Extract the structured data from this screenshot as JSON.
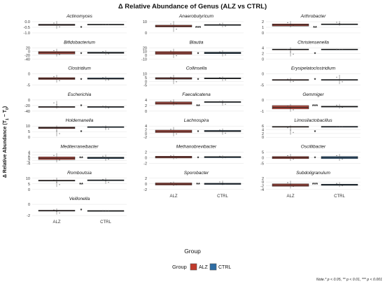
{
  "title": "Δ Relative Abundance of Genus (ALZ vs CTRL)",
  "chart_data": {
    "type": "boxplot",
    "title": "Δ Relative Abundance of Genus (ALZ vs CTRL)",
    "xlabel": "Group",
    "ylabel": "Δ Relative Abundance (T",
    "ylabel_sub1": "1",
    "ylabel_mid": " − T",
    "ylabel_sub2": "0",
    "ylabel_end": ")",
    "categories": [
      "ALZ",
      "CTRL"
    ],
    "legend": {
      "title": "Group",
      "position": "bottom",
      "items": [
        {
          "label": "ALZ",
          "color": "#c0392b"
        },
        {
          "label": "CTRL",
          "color": "#2e6da4"
        }
      ]
    },
    "note": "Note.* p < 0.05, ** p < 0.01, *** p < 0.001",
    "panels": [
      {
        "genus": "Actinomyces",
        "ticks": [
          "0.0",
          "-0.5",
          "-1.0"
        ],
        "sig": "*",
        "alz": {
          "q1": 0.62,
          "q3": 0.7,
          "whisk": [
            0.4,
            0.9
          ]
        },
        "ctrl": {
          "q1": 0.66,
          "q3": 0.7,
          "whisk": [
            0.66,
            0.7
          ]
        }
      },
      {
        "genus": "Anaerobutyricum",
        "ticks": [
          "10",
          "0"
        ],
        "sig": "***",
        "alz": {
          "q1": 0.52,
          "q3": 0.64,
          "whisk": [
            0.2,
            0.9
          ]
        },
        "ctrl": {
          "q1": 0.62,
          "q3": 0.68,
          "whisk": [
            0.5,
            0.8
          ]
        }
      },
      {
        "genus": "Arthrobacter",
        "ticks": [
          "2",
          "1",
          "0"
        ],
        "sig": "**",
        "alz": {
          "q1": 0.58,
          "q3": 0.72,
          "whisk": [
            0.5,
            0.9
          ]
        },
        "ctrl": {
          "q1": 0.68,
          "q3": 0.72,
          "whisk": [
            0.6,
            0.9
          ]
        }
      },
      {
        "genus": "Bifidobacterium",
        "ticks": [
          "20",
          "0",
          "-20",
          "-40"
        ],
        "sig": "*",
        "alz": {
          "q1": 0.46,
          "q3": 0.62,
          "whisk": [
            0.3,
            0.8
          ]
        },
        "ctrl": {
          "q1": 0.5,
          "q3": 0.58,
          "whisk": [
            0.4,
            0.7
          ]
        }
      },
      {
        "genus": "Blautia",
        "ticks": [
          "20",
          "10",
          "0",
          "-10"
        ],
        "sig": "*",
        "alz": {
          "q1": 0.44,
          "q3": 0.62,
          "whisk": [
            0.2,
            0.8
          ]
        },
        "ctrl": {
          "q1": 0.48,
          "q3": 0.58,
          "whisk": [
            0.3,
            0.7
          ]
        }
      },
      {
        "genus": "Christensenella",
        "ticks": [
          "4",
          "2",
          "0"
        ],
        "sig": "*",
        "alz": {
          "q1": 0.74,
          "q3": 0.78,
          "whisk": [
            0.3,
            0.9
          ]
        },
        "ctrl": {
          "q1": 0.74,
          "q3": 0.78,
          "whisk": [
            0.74,
            0.78
          ]
        }
      },
      {
        "genus": "Clostridium",
        "ticks": [
          "0",
          "-5"
        ],
        "sig": "*",
        "alz": {
          "q1": 0.5,
          "q3": 0.62,
          "whisk": [
            0.3,
            0.8
          ]
        },
        "ctrl": {
          "q1": 0.52,
          "q3": 0.6,
          "whisk": [
            0.4,
            0.7
          ]
        }
      },
      {
        "genus": "Collinsella",
        "ticks": [
          "10",
          "5",
          "0",
          "-5"
        ],
        "sig": "*",
        "alz": {
          "q1": 0.52,
          "q3": 0.62,
          "whisk": [
            0.2,
            0.8
          ]
        },
        "ctrl": {
          "q1": 0.54,
          "q3": 0.6,
          "whisk": [
            0.4,
            0.7
          ]
        }
      },
      {
        "genus": "Erysipelatoclostridium",
        "ticks": [
          "0",
          "-5"
        ],
        "sig": "*",
        "alz": {
          "q1": 0.44,
          "q3": 0.5,
          "whisk": [
            0.3,
            0.6
          ]
        },
        "ctrl": {
          "q1": 0.46,
          "q3": 0.5,
          "whisk": [
            0.2,
            0.8
          ]
        }
      },
      {
        "genus": "Escherichia",
        "ticks": [
          "0",
          "-20",
          "-40"
        ],
        "sig": "*",
        "alz": {
          "q1": 0.38,
          "q3": 0.44,
          "whisk": [
            0.3,
            0.8
          ]
        },
        "ctrl": {
          "q1": 0.38,
          "q3": 0.44,
          "whisk": [
            0.3,
            0.5
          ]
        }
      },
      {
        "genus": "Faecalicatena",
        "ticks": [
          "4",
          "2",
          "0"
        ],
        "sig": "**",
        "alz": {
          "q1": 0.58,
          "q3": 0.74,
          "whisk": [
            0.5,
            0.9
          ]
        },
        "ctrl": {
          "q1": 0.7,
          "q3": 0.76,
          "whisk": [
            0.5,
            0.85
          ]
        }
      },
      {
        "genus": "Gemmiger",
        "ticks": [
          "0",
          "-1"
        ],
        "sig": "***",
        "alz": {
          "q1": 0.28,
          "q3": 0.5,
          "whisk": [
            0.1,
            0.6
          ]
        },
        "ctrl": {
          "q1": 0.4,
          "q3": 0.46,
          "whisk": [
            0.3,
            0.6
          ]
        }
      },
      {
        "genus": "Holdemanella",
        "ticks": [
          "10",
          "5",
          "0"
        ],
        "sig": "*",
        "alz": {
          "q1": 0.7,
          "q3": 0.8,
          "whisk": [
            0.2,
            0.9
          ]
        },
        "ctrl": {
          "q1": 0.8,
          "q3": 0.82,
          "whisk": [
            0.6,
            0.9
          ]
        }
      },
      {
        "genus": "Lachnospira",
        "ticks": [
          "4",
          "2",
          "0",
          "-2"
        ],
        "sig": "*",
        "alz": {
          "q1": 0.44,
          "q3": 0.6,
          "whisk": [
            0.2,
            0.8
          ]
        },
        "ctrl": {
          "q1": 0.5,
          "q3": 0.58,
          "whisk": [
            0.3,
            0.7
          ]
        }
      },
      {
        "genus": "Limosilactobacillus",
        "ticks": [
          "6",
          "4",
          "2",
          "0"
        ],
        "sig": "*",
        "alz": {
          "q1": 0.8,
          "q3": 0.84,
          "whisk": [
            0.3,
            0.9
          ]
        },
        "ctrl": {
          "q1": 0.82,
          "q3": 0.84,
          "whisk": [
            0.82,
            0.84
          ]
        }
      },
      {
        "genus": "Mediterraneibacter",
        "ticks": [
          "4",
          "2",
          "0",
          "-2",
          "-4"
        ],
        "sig": "**",
        "alz": {
          "q1": 0.38,
          "q3": 0.56,
          "whisk": [
            0.2,
            0.8
          ]
        },
        "ctrl": {
          "q1": 0.44,
          "q3": 0.54,
          "whisk": [
            0.3,
            0.7
          ]
        }
      },
      {
        "genus": "Methanobrevibacter",
        "ticks": [
          "2",
          "0",
          "-2"
        ],
        "sig": "*",
        "alz": {
          "q1": 0.48,
          "q3": 0.6,
          "whisk": [
            0.4,
            0.7
          ]
        },
        "ctrl": {
          "q1": 0.5,
          "q3": 0.58,
          "whisk": [
            0.45,
            0.65
          ]
        }
      },
      {
        "genus": "Oscillibacter",
        "ticks": [
          "5",
          "0",
          "-5"
        ],
        "sig": "*",
        "alz": {
          "q1": 0.44,
          "q3": 0.58,
          "whisk": [
            0.3,
            0.75
          ]
        },
        "ctrl": {
          "q1": 0.44,
          "q3": 0.58,
          "whisk": [
            0.3,
            0.75
          ]
        }
      },
      {
        "genus": "Romboutsia",
        "ticks": [
          "10",
          "5",
          "0"
        ],
        "sig": "**",
        "alz": {
          "q1": 0.68,
          "q3": 0.74,
          "whisk": [
            0.3,
            0.9
          ]
        },
        "ctrl": {
          "q1": 0.7,
          "q3": 0.76,
          "whisk": [
            0.5,
            0.88
          ]
        }
      },
      {
        "genus": "Sporobacter",
        "ticks": [
          "2",
          "0",
          "-2"
        ],
        "sig": "**",
        "alz": {
          "q1": 0.42,
          "q3": 0.56,
          "whisk": [
            0.35,
            0.65
          ]
        },
        "ctrl": {
          "q1": 0.46,
          "q3": 0.54,
          "whisk": [
            0.4,
            0.7
          ]
        }
      },
      {
        "genus": "Subdoligranulum",
        "ticks": [
          "2",
          "0",
          "-2",
          "-4"
        ],
        "sig": "***",
        "alz": {
          "q1": 0.34,
          "q3": 0.5,
          "whisk": [
            0.2,
            0.7
          ]
        },
        "ctrl": {
          "q1": 0.4,
          "q3": 0.48,
          "whisk": [
            0.3,
            0.6
          ]
        }
      },
      {
        "genus": "Veillonella",
        "ticks": [
          "0",
          "-2"
        ],
        "sig": "*",
        "alz": {
          "q1": 0.42,
          "q3": 0.48,
          "whisk": [
            0.2,
            0.6
          ]
        },
        "ctrl": {
          "q1": 0.42,
          "q3": 0.46,
          "whisk": [
            0.42,
            0.46
          ]
        }
      }
    ]
  }
}
